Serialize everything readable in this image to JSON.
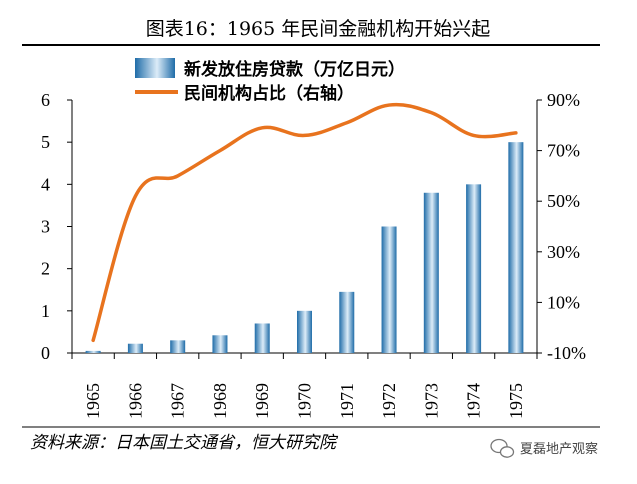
{
  "chart_data": {
    "type": "bar+line",
    "title": "图表16：1965 年民间金融机构开始兴起",
    "categories": [
      "1965",
      "1966",
      "1967",
      "1968",
      "1969",
      "1970",
      "1971",
      "1972",
      "1973",
      "1974",
      "1975"
    ],
    "series": [
      {
        "name": "新发放住房贷款（万亿日元）",
        "type": "bar",
        "axis": "left",
        "values": [
          0.05,
          0.22,
          0.3,
          0.42,
          0.7,
          1.0,
          1.45,
          3.0,
          3.8,
          4.0,
          5.0
        ]
      },
      {
        "name": "民间机构占比（右轴）",
        "type": "line",
        "axis": "right",
        "unit": "%",
        "values": [
          -5,
          52,
          60,
          70,
          79,
          76,
          81,
          88,
          85,
          76,
          77
        ]
      }
    ],
    "left_axis": {
      "ylim": [
        0,
        6
      ],
      "ticks": [
        "0",
        "1",
        "2",
        "3",
        "4",
        "5",
        "6"
      ]
    },
    "right_axis": {
      "ylim": [
        -10,
        90
      ],
      "ticks": [
        "-10%",
        "10%",
        "30%",
        "50%",
        "70%",
        "90%"
      ]
    },
    "legend_position": "top-center",
    "colors": {
      "bar_dark": "#1f6ca8",
      "bar_light": "#dcecf8",
      "line": "#e8731e"
    }
  },
  "source": "资料来源：日本国土交通省，恒大研究院",
  "watermark": "夏磊地产观察",
  "icons": {
    "watermark_icon": "wechat-icon"
  }
}
